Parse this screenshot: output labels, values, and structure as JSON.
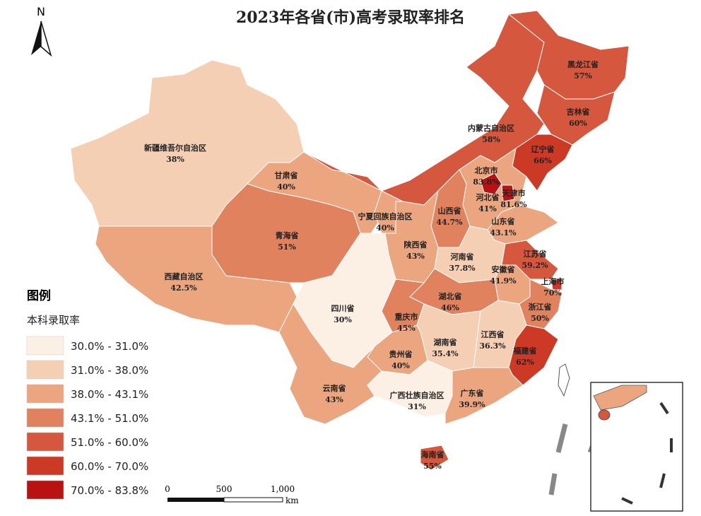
{
  "title": "2023年各省(市)高考录取率排名",
  "north": "N",
  "legend": {
    "title": "图例",
    "subtitle": "本科录取率",
    "items": [
      {
        "label": "30.0% - 31.0%",
        "color": "#fcefe3"
      },
      {
        "label": "31.0% - 38.0%",
        "color": "#f5cfb3"
      },
      {
        "label": "38.0% - 43.1%",
        "color": "#eba680"
      },
      {
        "label": "43.1% - 51.0%",
        "color": "#e0825e"
      },
      {
        "label": "51.0% - 60.0%",
        "color": "#d4573e"
      },
      {
        "label": "60.0% - 70.0%",
        "color": "#cc3a26"
      },
      {
        "label": "70.0% - 83.8%",
        "color": "#b81212"
      }
    ]
  },
  "scale_bar": {
    "labels": [
      "0",
      "500",
      "1,000"
    ],
    "unit": "km"
  },
  "provinces": [
    {
      "name": "新疆维吾尔自治区",
      "rate": "38%",
      "color": "#f5cfb3"
    },
    {
      "name": "西藏自治区",
      "rate": "42.5%",
      "color": "#eba680"
    },
    {
      "name": "青海省",
      "rate": "51%",
      "color": "#e0825e"
    },
    {
      "name": "甘肃省",
      "rate": "40%",
      "color": "#eba680"
    },
    {
      "name": "内蒙古自治区",
      "rate": "58%",
      "color": "#d4573e"
    },
    {
      "name": "黑龙江省",
      "rate": "57%",
      "color": "#d4573e"
    },
    {
      "name": "吉林省",
      "rate": "60%",
      "color": "#d4573e"
    },
    {
      "name": "辽宁省",
      "rate": "66%",
      "color": "#cc3a26"
    },
    {
      "name": "河北省",
      "rate": "41%",
      "color": "#eba680"
    },
    {
      "name": "北京市",
      "rate": "83.8%",
      "color": "#b81212"
    },
    {
      "name": "天津市",
      "rate": "81.6%",
      "color": "#b81212"
    },
    {
      "name": "山西省",
      "rate": "44.7%",
      "color": "#e0825e"
    },
    {
      "name": "山东省",
      "rate": "43.1%",
      "color": "#eba680"
    },
    {
      "name": "宁夏回族自治区",
      "rate": "40%",
      "color": "#eba680"
    },
    {
      "name": "陕西省",
      "rate": "43%",
      "color": "#eba680"
    },
    {
      "name": "河南省",
      "rate": "37.8%",
      "color": "#f5cfb3"
    },
    {
      "name": "江苏省",
      "rate": "59.2%",
      "color": "#d4573e"
    },
    {
      "name": "上海市",
      "rate": "70%",
      "color": "#cc3a26"
    },
    {
      "name": "安徽省",
      "rate": "41.9%",
      "color": "#eba680"
    },
    {
      "name": "浙江省",
      "rate": "50%",
      "color": "#e0825e"
    },
    {
      "name": "湖北省",
      "rate": "46%",
      "color": "#e0825e"
    },
    {
      "name": "重庆市",
      "rate": "45%",
      "color": "#e0825e"
    },
    {
      "name": "四川省",
      "rate": "30%",
      "color": "#fcefe3"
    },
    {
      "name": "湖南省",
      "rate": "35.4%",
      "color": "#f5cfb3"
    },
    {
      "name": "江西省",
      "rate": "36.3%",
      "color": "#f5cfb3"
    },
    {
      "name": "福建省",
      "rate": "62%",
      "color": "#cc3a26"
    },
    {
      "name": "贵州省",
      "rate": "40%",
      "color": "#eba680"
    },
    {
      "name": "云南省",
      "rate": "43%",
      "color": "#eba680"
    },
    {
      "name": "广西壮族自治区",
      "rate": "31%",
      "color": "#fcefe3"
    },
    {
      "name": "广东省",
      "rate": "39.9%",
      "color": "#eba680"
    },
    {
      "name": "海南省",
      "rate": "55%",
      "color": "#d4573e"
    }
  ]
}
